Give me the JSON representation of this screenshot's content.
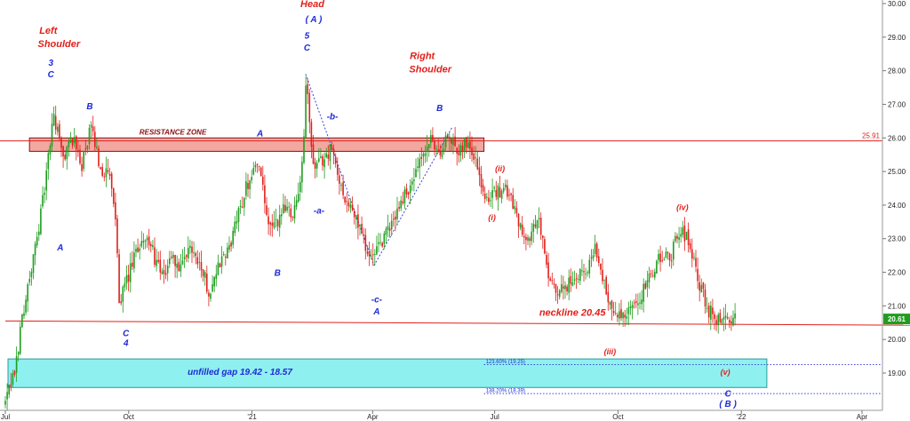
{
  "chart_data": {
    "type": "candlestick",
    "y_range": [
      18.0,
      30.0
    ],
    "y_ticks": [
      "30.00",
      "29.00",
      "28.00",
      "27.00",
      "26.00",
      "25.00",
      "24.00",
      "23.00",
      "22.00",
      "21.00",
      "20.00",
      "19.00"
    ],
    "x_ticks": [
      {
        "label": "Jul",
        "date": "2020-07"
      },
      {
        "label": "Oct",
        "date": "2020-10"
      },
      {
        "label": "'21",
        "date": "2021-01"
      },
      {
        "label": "Apr",
        "date": "2021-04"
      },
      {
        "label": "Jul",
        "date": "2021-07"
      },
      {
        "label": "Oct",
        "date": "2021-10"
      },
      {
        "label": "'22",
        "date": "2022-01"
      },
      {
        "label": "Apr",
        "date": "2022-04"
      }
    ],
    "colors": {
      "up": "#1f9d1f",
      "down": "#e0201b",
      "resistance_fill": "#f2a8a0",
      "gap_fill": "#8ff0f0",
      "line": "#e0201b",
      "fib": "#3a46d8"
    },
    "last_price": "20.61",
    "resistance_level_label": "25.91",
    "anchors": [
      {
        "date": "2020-07-01",
        "price": 18.1
      },
      {
        "date": "2020-07-08",
        "price": 19.0
      },
      {
        "date": "2020-07-14",
        "price": 20.8
      },
      {
        "date": "2020-07-22",
        "price": 22.4
      },
      {
        "date": "2020-07-30",
        "price": 24.4
      },
      {
        "date": "2020-08-06",
        "price": 26.7
      },
      {
        "date": "2020-08-13",
        "price": 25.4
      },
      {
        "date": "2020-08-20",
        "price": 26.0
      },
      {
        "date": "2020-08-27",
        "price": 25.2
      },
      {
        "date": "2020-09-03",
        "price": 26.3
      },
      {
        "date": "2020-09-10",
        "price": 25.1
      },
      {
        "date": "2020-09-17",
        "price": 24.8
      },
      {
        "date": "2020-09-21",
        "price": 23.6
      },
      {
        "date": "2020-09-24",
        "price": 21.2
      },
      {
        "date": "2020-09-28",
        "price": 21.5
      },
      {
        "date": "2020-10-05",
        "price": 22.4
      },
      {
        "date": "2020-10-12",
        "price": 23.1
      },
      {
        "date": "2020-10-19",
        "price": 22.6
      },
      {
        "date": "2020-10-26",
        "price": 21.8
      },
      {
        "date": "2020-11-02",
        "price": 22.5
      },
      {
        "date": "2020-11-09",
        "price": 22.0
      },
      {
        "date": "2020-11-16",
        "price": 22.8
      },
      {
        "date": "2020-11-23",
        "price": 22.3
      },
      {
        "date": "2020-11-30",
        "price": 21.4
      },
      {
        "date": "2020-12-07",
        "price": 22.2
      },
      {
        "date": "2020-12-14",
        "price": 22.6
      },
      {
        "date": "2020-12-21",
        "price": 23.6
      },
      {
        "date": "2020-12-28",
        "price": 24.6
      },
      {
        "date": "2021-01-06",
        "price": 25.4
      },
      {
        "date": "2021-01-12",
        "price": 23.5
      },
      {
        "date": "2021-01-18",
        "price": 23.3
      },
      {
        "date": "2021-01-25",
        "price": 24.0
      },
      {
        "date": "2021-02-01",
        "price": 23.8
      },
      {
        "date": "2021-02-08",
        "price": 25.2
      },
      {
        "date": "2021-02-10",
        "price": 27.8
      },
      {
        "date": "2021-02-16",
        "price": 25.0
      },
      {
        "date": "2021-02-22",
        "price": 25.3
      },
      {
        "date": "2021-03-01",
        "price": 25.7
      },
      {
        "date": "2021-03-08",
        "price": 24.6
      },
      {
        "date": "2021-03-15",
        "price": 23.9
      },
      {
        "date": "2021-03-22",
        "price": 23.4
      },
      {
        "date": "2021-03-29",
        "price": 22.5
      },
      {
        "date": "2021-04-02",
        "price": 22.4
      },
      {
        "date": "2021-04-09",
        "price": 23.0
      },
      {
        "date": "2021-04-16",
        "price": 23.5
      },
      {
        "date": "2021-04-23",
        "price": 24.2
      },
      {
        "date": "2021-04-30",
        "price": 24.6
      },
      {
        "date": "2021-05-07",
        "price": 25.3
      },
      {
        "date": "2021-05-14",
        "price": 25.9
      },
      {
        "date": "2021-05-21",
        "price": 25.6
      },
      {
        "date": "2021-05-28",
        "price": 26.0
      },
      {
        "date": "2021-06-04",
        "price": 25.7
      },
      {
        "date": "2021-06-11",
        "price": 25.9
      },
      {
        "date": "2021-06-17",
        "price": 25.4
      },
      {
        "date": "2021-06-21",
        "price": 24.5
      },
      {
        "date": "2021-06-28",
        "price": 24.2
      },
      {
        "date": "2021-07-06",
        "price": 24.5
      },
      {
        "date": "2021-07-13",
        "price": 24.3
      },
      {
        "date": "2021-07-20",
        "price": 23.4
      },
      {
        "date": "2021-07-27",
        "price": 23.0
      },
      {
        "date": "2021-08-03",
        "price": 23.6
      },
      {
        "date": "2021-08-10",
        "price": 21.8
      },
      {
        "date": "2021-08-17",
        "price": 21.3
      },
      {
        "date": "2021-08-24",
        "price": 21.6
      },
      {
        "date": "2021-08-31",
        "price": 21.9
      },
      {
        "date": "2021-09-07",
        "price": 22.0
      },
      {
        "date": "2021-09-14",
        "price": 22.8
      },
      {
        "date": "2021-09-21",
        "price": 21.6
      },
      {
        "date": "2021-09-28",
        "price": 20.8
      },
      {
        "date": "2021-10-05",
        "price": 20.6
      },
      {
        "date": "2021-10-12",
        "price": 20.9
      },
      {
        "date": "2021-10-19",
        "price": 21.4
      },
      {
        "date": "2021-10-26",
        "price": 22.0
      },
      {
        "date": "2021-11-02",
        "price": 22.5
      },
      {
        "date": "2021-11-09",
        "price": 22.4
      },
      {
        "date": "2021-11-16",
        "price": 23.3
      },
      {
        "date": "2021-11-23",
        "price": 23.0
      },
      {
        "date": "2021-11-30",
        "price": 21.7
      },
      {
        "date": "2021-12-07",
        "price": 20.9
      },
      {
        "date": "2021-12-14",
        "price": 20.6
      },
      {
        "date": "2021-12-21",
        "price": 20.5
      },
      {
        "date": "2021-12-28",
        "price": 20.6
      }
    ],
    "resistance_zone": {
      "label": "RESISTANCE ZONE",
      "price_top": 26.0,
      "price_bottom": 25.6,
      "date_start": "2020-07-19",
      "date_end": "2021-06-23"
    },
    "resistance_line": {
      "price": 25.91
    },
    "neckline": {
      "label": "neckline 20.45",
      "price_start": 20.55,
      "price_end": 20.42,
      "date_start": "2020-07-01",
      "date_end": "2022-05-31"
    },
    "gap_zone": {
      "label": "unfilled gap 19.42 - 18.57",
      "price_top": 19.42,
      "price_bottom": 18.57,
      "date_start": "2020-07-03",
      "date_end": "2022-01-20"
    },
    "fib_levels": [
      {
        "label": "123.60% (19.25)",
        "price": 19.25,
        "date_start": "2021-06-23"
      },
      {
        "label": "138.20% (18.39)",
        "price": 18.39,
        "date_start": "2021-06-23"
      }
    ],
    "dotted_lines": [
      {
        "points": [
          {
            "date": "2021-02-10",
            "price": 27.9
          },
          {
            "date": "2021-04-02",
            "price": 22.2
          }
        ]
      },
      {
        "points": [
          {
            "date": "2021-04-02",
            "price": 22.2
          },
          {
            "date": "2021-05-30",
            "price": 26.3
          }
        ]
      }
    ],
    "annotations": [
      {
        "text": "Left",
        "date": "2020-08-02",
        "price": 29.1,
        "style": "red"
      },
      {
        "text": "Shoulder",
        "date": "2020-08-10",
        "price": 28.7,
        "style": "red"
      },
      {
        "text": "3",
        "date": "2020-08-04",
        "price": 28.15,
        "style": "blue"
      },
      {
        "text": "C",
        "date": "2020-08-04",
        "price": 27.8,
        "style": "blue"
      },
      {
        "text": "B",
        "date": "2020-09-02",
        "price": 26.85,
        "style": "blue"
      },
      {
        "text": "A",
        "date": "2020-08-11",
        "price": 22.65,
        "style": "blue"
      },
      {
        "text": "C",
        "date": "2020-09-29",
        "price": 20.1,
        "style": "blue"
      },
      {
        "text": "4",
        "date": "2020-09-29",
        "price": 19.8,
        "style": "blue"
      },
      {
        "text": "RESISTANCE ZONE",
        "date": "2020-11-03",
        "price": 26.1,
        "style": "zone"
      },
      {
        "text": "A",
        "date": "2021-01-07",
        "price": 26.05,
        "style": "blue"
      },
      {
        "text": "B",
        "date": "2021-01-20",
        "price": 21.9,
        "style": "blue"
      },
      {
        "text": "-a-",
        "date": "2021-02-20",
        "price": 23.75,
        "style": "blue"
      },
      {
        "text": "-b-",
        "date": "2021-03-02",
        "price": 26.55,
        "style": "blue"
      },
      {
        "text": "Head",
        "date": "2021-02-15",
        "price": 29.9,
        "style": "red"
      },
      {
        "text": "( A )",
        "date": "2021-02-16",
        "price": 29.45,
        "style": "blue"
      },
      {
        "text": "5",
        "date": "2021-02-11",
        "price": 28.95,
        "style": "blue"
      },
      {
        "text": "C",
        "date": "2021-02-11",
        "price": 28.6,
        "style": "blue"
      },
      {
        "text": "-c-",
        "date": "2021-04-04",
        "price": 21.1,
        "style": "blue"
      },
      {
        "text": "A",
        "date": "2021-04-04",
        "price": 20.75,
        "style": "blue"
      },
      {
        "text": "Right",
        "date": "2021-05-08",
        "price": 28.35,
        "style": "red"
      },
      {
        "text": "Shoulder",
        "date": "2021-05-14",
        "price": 27.95,
        "style": "red"
      },
      {
        "text": "B",
        "date": "2021-05-21",
        "price": 26.8,
        "style": "blue"
      },
      {
        "text": "(i)",
        "date": "2021-06-29",
        "price": 23.55,
        "style": "red-small"
      },
      {
        "text": "(ii)",
        "date": "2021-07-05",
        "price": 25.0,
        "style": "red-small"
      },
      {
        "text": "(iii)",
        "date": "2021-09-25",
        "price": 19.55,
        "style": "red-small"
      },
      {
        "text": "(iv)",
        "date": "2021-11-18",
        "price": 23.85,
        "style": "red-small"
      },
      {
        "text": "(v)",
        "date": "2021-12-20",
        "price": 18.95,
        "style": "red-small"
      },
      {
        "text": "C",
        "date": "2021-12-22",
        "price": 18.3,
        "style": "blue"
      },
      {
        "text": "( B )",
        "date": "2021-12-22",
        "price": 18.0,
        "style": "blue"
      },
      {
        "text": "neckline 20.45",
        "date": "2021-08-28",
        "price": 20.7,
        "style": "red"
      },
      {
        "text": "unfilled gap 19.42 - 18.57",
        "date": "2020-12-23",
        "price": 18.95,
        "style": "gap"
      }
    ]
  }
}
